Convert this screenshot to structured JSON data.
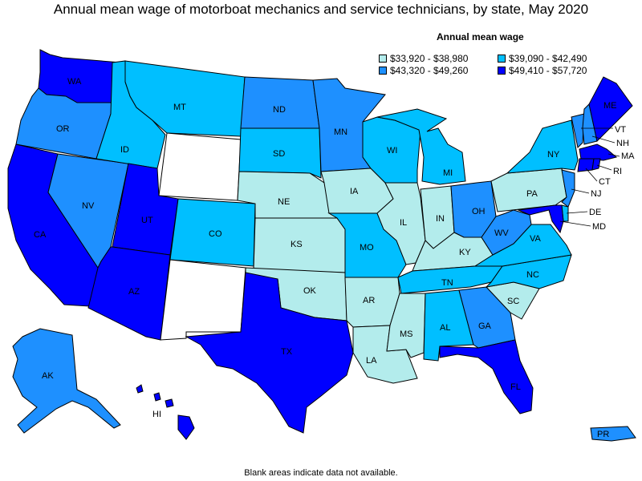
{
  "title": "Annual mean wage of motorboat mechanics and service technicians, by state, May 2020",
  "legend": {
    "title": "Annual mean wage",
    "items": [
      {
        "label": "$33,920 - $38,980",
        "color": "#b3ecec"
      },
      {
        "label": "$39,090 - $42,490",
        "color": "#00bfff"
      },
      {
        "label": "$43,320 - $49,260",
        "color": "#1e90ff"
      },
      {
        "label": "$49,410 - $57,720",
        "color": "#0000ff"
      }
    ]
  },
  "footnote": "Blank areas indicate data not available.",
  "states": {
    "WA": {
      "label": "WA",
      "tier": 3
    },
    "OR": {
      "label": "OR",
      "tier": 2
    },
    "CA": {
      "label": "CA",
      "tier": 3
    },
    "NV": {
      "label": "NV",
      "tier": 2
    },
    "ID": {
      "label": "ID",
      "tier": 1
    },
    "MT": {
      "label": "MT",
      "tier": 1
    },
    "WY": {
      "label": "",
      "tier": -1
    },
    "UT": {
      "label": "UT",
      "tier": 3
    },
    "AZ": {
      "label": "AZ",
      "tier": 3
    },
    "CO": {
      "label": "CO",
      "tier": 1
    },
    "NM": {
      "label": "",
      "tier": -1
    },
    "ND": {
      "label": "ND",
      "tier": 2
    },
    "SD": {
      "label": "SD",
      "tier": 1
    },
    "NE": {
      "label": "NE",
      "tier": 0
    },
    "KS": {
      "label": "KS",
      "tier": 0
    },
    "OK": {
      "label": "OK",
      "tier": 0
    },
    "TX": {
      "label": "TX",
      "tier": 3
    },
    "MN": {
      "label": "MN",
      "tier": 2
    },
    "IA": {
      "label": "IA",
      "tier": 0
    },
    "MO": {
      "label": "MO",
      "tier": 1
    },
    "AR": {
      "label": "AR",
      "tier": 0
    },
    "LA": {
      "label": "LA",
      "tier": 0
    },
    "WI": {
      "label": "WI",
      "tier": 1
    },
    "IL": {
      "label": "IL",
      "tier": 0
    },
    "MI": {
      "label": "MI",
      "tier": 1
    },
    "IN": {
      "label": "IN",
      "tier": 0
    },
    "OH": {
      "label": "OH",
      "tier": 2
    },
    "KY": {
      "label": "KY",
      "tier": 0
    },
    "TN": {
      "label": "TN",
      "tier": 1
    },
    "MS": {
      "label": "MS",
      "tier": 0
    },
    "AL": {
      "label": "AL",
      "tier": 1
    },
    "GA": {
      "label": "GA",
      "tier": 2
    },
    "FL": {
      "label": "FL",
      "tier": 3
    },
    "SC": {
      "label": "SC",
      "tier": 0
    },
    "NC": {
      "label": "NC",
      "tier": 1
    },
    "VA": {
      "label": "VA",
      "tier": 1
    },
    "WV": {
      "label": "WV",
      "tier": 2
    },
    "PA": {
      "label": "PA",
      "tier": 0
    },
    "NY": {
      "label": "NY",
      "tier": 1
    },
    "VT": {
      "label": "VT",
      "tier": 2
    },
    "NH": {
      "label": "NH",
      "tier": 2
    },
    "ME": {
      "label": "ME",
      "tier": 3
    },
    "MA": {
      "label": "MA",
      "tier": 3
    },
    "RI": {
      "label": "RI",
      "tier": 3
    },
    "CT": {
      "label": "CT",
      "tier": 3
    },
    "NJ": {
      "label": "NJ",
      "tier": 2
    },
    "DE": {
      "label": "DE",
      "tier": 1
    },
    "MD": {
      "label": "MD",
      "tier": 3
    },
    "AK": {
      "label": "AK",
      "tier": 2
    },
    "HI": {
      "label": "HI",
      "tier": 3
    },
    "PR": {
      "label": "PR",
      "tier": 2
    }
  }
}
